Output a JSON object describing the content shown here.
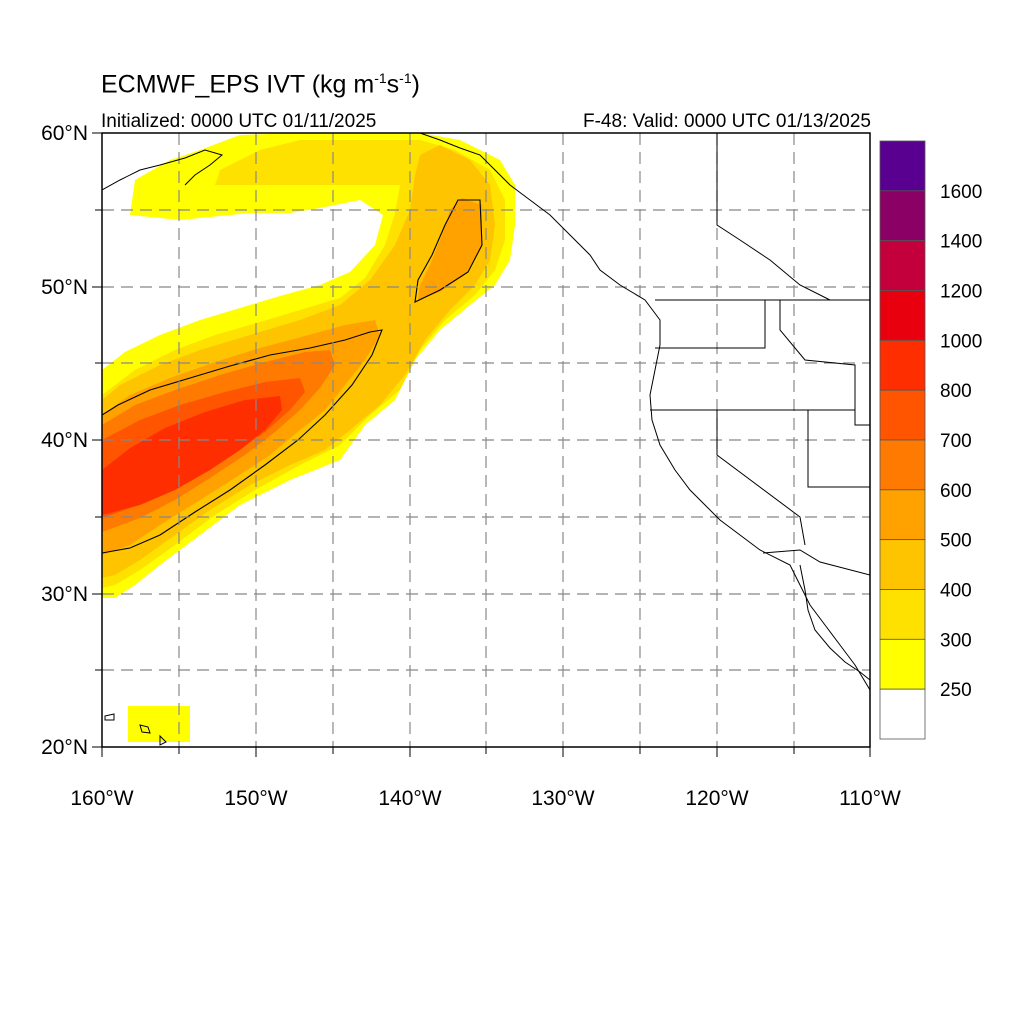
{
  "title": {
    "main": "ECMWF_EPS IVT",
    "units_prefix": "(kg m",
    "exp1": "-1",
    "units_mid": "s",
    "exp2": "-1",
    "units_suffix": ")"
  },
  "subtitle_left": "Initialized: 0000 UTC 01/11/2025",
  "subtitle_right": "F-48: Valid: 0000 UTC 01/13/2025",
  "map": {
    "extent": {
      "lon_min": -160,
      "lon_max": -110,
      "lat_min": 20,
      "lat_max": 60
    },
    "lat_labels": [
      "60°N",
      "50°N",
      "40°N",
      "30°N",
      "20°N"
    ],
    "lon_labels": [
      "160°W",
      "150°W",
      "140°W",
      "130°W",
      "120°W",
      "110°W"
    ]
  },
  "colorbar": {
    "labels": [
      "1600",
      "1400",
      "1200",
      "1000",
      "800",
      "700",
      "600",
      "500",
      "400",
      "300",
      "250"
    ],
    "colors_top_to_bottom": [
      "#5a0090",
      "#8a0064",
      "#c4003c",
      "#e8000f",
      "#ff2e00",
      "#ff5500",
      "#ff7a00",
      "#ffa200",
      "#ffc400",
      "#ffe100",
      "#ffff00",
      "#ffffff"
    ]
  }
}
